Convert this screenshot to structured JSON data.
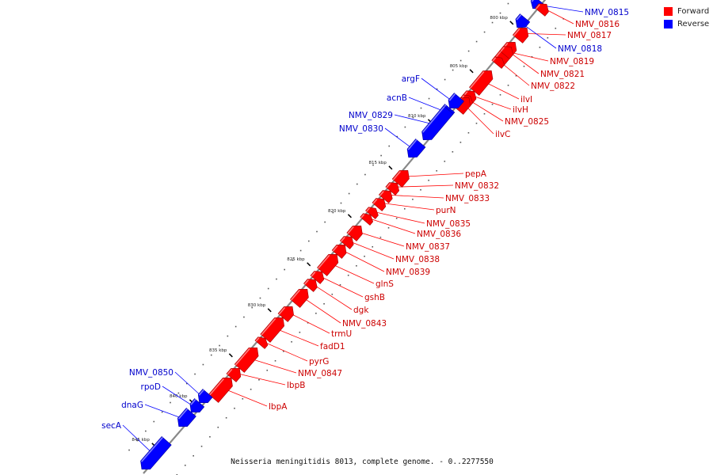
{
  "caption": "Neisseria meningitidis 8013, complete genome. - 0..2277550",
  "legend": [
    {
      "label": "Forward",
      "color": "#ff0000"
    },
    {
      "label": "Reverse",
      "color": "#0000ff"
    }
  ],
  "colors": {
    "forward": "#ff0000",
    "reverse": "#0000ff",
    "backbone": "#888888",
    "label_forward": "#cc0000",
    "label_reverse": "#0000cc"
  },
  "ticks": [
    "800 kbp",
    "805 kbp",
    "810 kbp",
    "815 kbp",
    "820 kbp",
    "825 kbp",
    "830 kbp",
    "835 kbp",
    "840 kbp",
    "845 kbp"
  ],
  "genes": [
    {
      "name": "NMV_0815",
      "strand": "reverse"
    },
    {
      "name": "NMV_0816",
      "strand": "forward"
    },
    {
      "name": "NMV_0817",
      "strand": "forward"
    },
    {
      "name": "NMV_0818",
      "strand": "reverse"
    },
    {
      "name": "NMV_0819",
      "strand": "forward"
    },
    {
      "name": "NMV_0821",
      "strand": "forward"
    },
    {
      "name": "NMV_0822",
      "strand": "forward"
    },
    {
      "name": "ilvI",
      "strand": "forward"
    },
    {
      "name": "ilvH",
      "strand": "forward"
    },
    {
      "name": "NMV_0825",
      "strand": "forward"
    },
    {
      "name": "ilvC",
      "strand": "forward"
    },
    {
      "name": "argF",
      "strand": "reverse"
    },
    {
      "name": "acnB",
      "strand": "reverse"
    },
    {
      "name": "NMV_0829",
      "strand": "reverse"
    },
    {
      "name": "NMV_0830",
      "strand": "reverse"
    },
    {
      "name": "pepA",
      "strand": "forward"
    },
    {
      "name": "NMV_0832",
      "strand": "forward"
    },
    {
      "name": "NMV_0833",
      "strand": "forward"
    },
    {
      "name": "purN",
      "strand": "forward"
    },
    {
      "name": "NMV_0835",
      "strand": "forward"
    },
    {
      "name": "NMV_0836",
      "strand": "forward"
    },
    {
      "name": "NMV_0837",
      "strand": "forward"
    },
    {
      "name": "NMV_0838",
      "strand": "forward"
    },
    {
      "name": "NMV_0839",
      "strand": "forward"
    },
    {
      "name": "glnS",
      "strand": "forward"
    },
    {
      "name": "gshB",
      "strand": "forward"
    },
    {
      "name": "dgk",
      "strand": "forward"
    },
    {
      "name": "NMV_0843",
      "strand": "forward"
    },
    {
      "name": "trmU",
      "strand": "forward"
    },
    {
      "name": "fadD1",
      "strand": "forward"
    },
    {
      "name": "pyrG",
      "strand": "forward"
    },
    {
      "name": "NMV_0847",
      "strand": "forward"
    },
    {
      "name": "lbpB",
      "strand": "forward"
    },
    {
      "name": "lbpA",
      "strand": "forward"
    },
    {
      "name": "NMV_0850",
      "strand": "reverse"
    },
    {
      "name": "rpoD",
      "strand": "reverse"
    },
    {
      "name": "dnaG",
      "strand": "reverse"
    },
    {
      "name": "secA",
      "strand": "reverse"
    }
  ]
}
